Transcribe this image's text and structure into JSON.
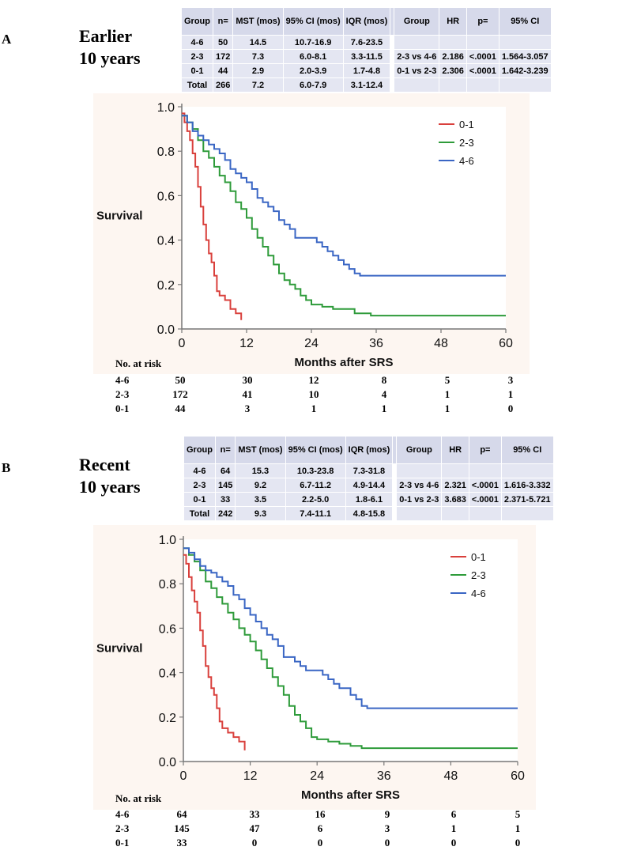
{
  "panels": [
    {
      "letter": "A",
      "title_line1": "Earlier",
      "title_line2": "10 years",
      "table_left": {
        "headers": [
          "Group",
          "n=",
          "MST (mos)",
          "95% CI (mos)",
          "IQR (mos)"
        ],
        "rows": [
          [
            "4-6",
            "50",
            "14.5",
            "10.7-16.9",
            "7.6-23.5"
          ],
          [
            "2-3",
            "172",
            "7.3",
            "6.0-8.1",
            "3.3-11.5"
          ],
          [
            "0-1",
            "44",
            "2.9",
            "2.0-3.9",
            "1.7-4.8"
          ],
          [
            "Total",
            "266",
            "7.2",
            "6.0-7.9",
            "3.1-12.4"
          ]
        ]
      },
      "table_right": {
        "headers": [
          "Group",
          "HR",
          "p=",
          "95% CI"
        ],
        "rows": [
          [
            "",
            "",
            "",
            ""
          ],
          [
            "2-3 vs 4-6",
            "2.186",
            "<.0001",
            "1.564-3.057"
          ],
          [
            "0-1 vs 2-3",
            "2.306",
            "<.0001",
            "1.642-3.239"
          ],
          [
            "",
            "",
            "",
            ""
          ]
        ]
      },
      "risk_table": {
        "title": "No. at risk",
        "rows": [
          {
            "group": "4-6",
            "values": [
              "50",
              "30",
              "12",
              "8",
              "5",
              "3"
            ]
          },
          {
            "group": "2-3",
            "values": [
              "172",
              "41",
              "10",
              "4",
              "1",
              "1"
            ]
          },
          {
            "group": "0-1",
            "values": [
              "44",
              "3",
              "1",
              "1",
              "1",
              "0"
            ]
          }
        ]
      }
    },
    {
      "letter": "B",
      "title_line1": "Recent",
      "title_line2": "10 years",
      "table_left": {
        "headers": [
          "Group",
          "n=",
          "MST (mos)",
          "95% CI (mos)",
          "IQR (mos)"
        ],
        "rows": [
          [
            "4-6",
            "64",
            "15.3",
            "10.3-23.8",
            "7.3-31.8"
          ],
          [
            "2-3",
            "145",
            "9.2",
            "6.7-11.2",
            "4.9-14.4"
          ],
          [
            "0-1",
            "33",
            "3.5",
            "2.2-5.0",
            "1.8-6.1"
          ],
          [
            "Total",
            "242",
            "9.3",
            "7.4-11.1",
            "4.8-15.8"
          ]
        ]
      },
      "table_right": {
        "headers": [
          "Group",
          "HR",
          "p=",
          "95% CI"
        ],
        "rows": [
          [
            "",
            "",
            "",
            ""
          ],
          [
            "2-3 vs 4-6",
            "2.321",
            "<.0001",
            "1.616-3.332"
          ],
          [
            "0-1 vs 2-3",
            "3.683",
            "<.0001",
            "2.371-5.721"
          ],
          [
            "",
            "",
            "",
            ""
          ]
        ]
      },
      "risk_table": {
        "title": "No. at risk",
        "rows": [
          {
            "group": "4-6",
            "values": [
              "64",
              "33",
              "16",
              "9",
              "6",
              "5"
            ]
          },
          {
            "group": "2-3",
            "values": [
              "145",
              "47",
              "6",
              "3",
              "1",
              "1"
            ]
          },
          {
            "group": "0-1",
            "values": [
              "33",
              "0",
              "0",
              "0",
              "0",
              "0"
            ]
          }
        ]
      }
    }
  ],
  "chart_data": [
    {
      "type": "line",
      "title": "Earlier 10 years",
      "xlabel": "Months after SRS",
      "ylabel": "Survival",
      "xlim": [
        0,
        60
      ],
      "ylim": [
        0,
        1.0
      ],
      "xticks": [
        "0",
        "12",
        "24",
        "36",
        "48",
        "60"
      ],
      "yticks": [
        "0.0",
        "0.2",
        "0.4",
        "0.6",
        "0.8",
        "1.0"
      ],
      "legend": "top-right",
      "series": [
        {
          "name": "0-1",
          "color": "#d9403c",
          "points": [
            [
              0,
              0.97
            ],
            [
              0.5,
              0.93
            ],
            [
              1,
              0.89
            ],
            [
              1.5,
              0.85
            ],
            [
              2,
              0.79
            ],
            [
              2.5,
              0.73
            ],
            [
              3,
              0.64
            ],
            [
              3.5,
              0.55
            ],
            [
              4,
              0.47
            ],
            [
              4.5,
              0.4
            ],
            [
              5,
              0.34
            ],
            [
              5.5,
              0.3
            ],
            [
              6,
              0.24
            ],
            [
              6.5,
              0.17
            ],
            [
              7,
              0.15
            ],
            [
              8,
              0.13
            ],
            [
              9,
              0.09
            ],
            [
              10,
              0.07
            ],
            [
              11,
              0.04
            ]
          ]
        },
        {
          "name": "2-3",
          "color": "#2e9b3a",
          "points": [
            [
              0,
              0.96
            ],
            [
              1,
              0.93
            ],
            [
              2,
              0.9
            ],
            [
              3,
              0.85
            ],
            [
              4,
              0.8
            ],
            [
              5,
              0.77
            ],
            [
              6,
              0.73
            ],
            [
              7,
              0.69
            ],
            [
              8,
              0.66
            ],
            [
              9,
              0.62
            ],
            [
              10,
              0.57
            ],
            [
              11,
              0.54
            ],
            [
              12,
              0.5
            ],
            [
              13,
              0.45
            ],
            [
              14,
              0.41
            ],
            [
              15,
              0.37
            ],
            [
              16,
              0.33
            ],
            [
              17,
              0.29
            ],
            [
              18,
              0.25
            ],
            [
              19,
              0.22
            ],
            [
              20,
              0.2
            ],
            [
              21,
              0.18
            ],
            [
              22,
              0.15
            ],
            [
              23,
              0.13
            ],
            [
              24,
              0.11
            ],
            [
              26,
              0.1
            ],
            [
              28,
              0.09
            ],
            [
              30,
              0.09
            ],
            [
              32,
              0.07
            ],
            [
              35,
              0.06
            ],
            [
              60,
              0.06
            ]
          ]
        },
        {
          "name": "4-6",
          "color": "#3a66c4",
          "points": [
            [
              0,
              0.96
            ],
            [
              1,
              0.93
            ],
            [
              2,
              0.89
            ],
            [
              3,
              0.87
            ],
            [
              4,
              0.85
            ],
            [
              5,
              0.83
            ],
            [
              6,
              0.81
            ],
            [
              7,
              0.79
            ],
            [
              8,
              0.76
            ],
            [
              9,
              0.72
            ],
            [
              10,
              0.7
            ],
            [
              11,
              0.68
            ],
            [
              12,
              0.66
            ],
            [
              13,
              0.63
            ],
            [
              14,
              0.59
            ],
            [
              15,
              0.57
            ],
            [
              16,
              0.55
            ],
            [
              17,
              0.53
            ],
            [
              18,
              0.49
            ],
            [
              19,
              0.47
            ],
            [
              20,
              0.45
            ],
            [
              21,
              0.41
            ],
            [
              24,
              0.41
            ],
            [
              25,
              0.39
            ],
            [
              26,
              0.37
            ],
            [
              27,
              0.35
            ],
            [
              28,
              0.33
            ],
            [
              29,
              0.31
            ],
            [
              30,
              0.29
            ],
            [
              31,
              0.27
            ],
            [
              32,
              0.25
            ],
            [
              33,
              0.24
            ],
            [
              60,
              0.24
            ]
          ]
        }
      ]
    },
    {
      "type": "line",
      "title": "Recent 10 years",
      "xlabel": "Months after SRS",
      "ylabel": "Survival",
      "xlim": [
        0,
        60
      ],
      "ylim": [
        0,
        1.0
      ],
      "xticks": [
        "0",
        "12",
        "24",
        "36",
        "48",
        "60"
      ],
      "yticks": [
        "0.0",
        "0.2",
        "0.4",
        "0.6",
        "0.8",
        "1.0"
      ],
      "legend": "top-right",
      "series": [
        {
          "name": "0-1",
          "color": "#d9403c",
          "points": [
            [
              0,
              0.93
            ],
            [
              0.5,
              0.89
            ],
            [
              1,
              0.83
            ],
            [
              1.5,
              0.77
            ],
            [
              2,
              0.72
            ],
            [
              2.5,
              0.67
            ],
            [
              3,
              0.59
            ],
            [
              3.5,
              0.52
            ],
            [
              4,
              0.43
            ],
            [
              4.5,
              0.38
            ],
            [
              5,
              0.33
            ],
            [
              5.5,
              0.3
            ],
            [
              6,
              0.24
            ],
            [
              6.5,
              0.18
            ],
            [
              7,
              0.15
            ],
            [
              8,
              0.13
            ],
            [
              9,
              0.11
            ],
            [
              10,
              0.09
            ],
            [
              11,
              0.05
            ]
          ]
        },
        {
          "name": "2-3",
          "color": "#2e9b3a",
          "points": [
            [
              0,
              0.96
            ],
            [
              1,
              0.93
            ],
            [
              2,
              0.9
            ],
            [
              3,
              0.86
            ],
            [
              4,
              0.81
            ],
            [
              5,
              0.78
            ],
            [
              6,
              0.74
            ],
            [
              7,
              0.71
            ],
            [
              8,
              0.67
            ],
            [
              9,
              0.64
            ],
            [
              10,
              0.6
            ],
            [
              11,
              0.57
            ],
            [
              12,
              0.54
            ],
            [
              13,
              0.5
            ],
            [
              14,
              0.46
            ],
            [
              15,
              0.42
            ],
            [
              16,
              0.38
            ],
            [
              17,
              0.34
            ],
            [
              18,
              0.3
            ],
            [
              19,
              0.25
            ],
            [
              20,
              0.21
            ],
            [
              21,
              0.18
            ],
            [
              22,
              0.15
            ],
            [
              23,
              0.11
            ],
            [
              24,
              0.1
            ],
            [
              26,
              0.09
            ],
            [
              28,
              0.08
            ],
            [
              30,
              0.07
            ],
            [
              32,
              0.06
            ],
            [
              35,
              0.06
            ],
            [
              60,
              0.06
            ]
          ]
        },
        {
          "name": "4-6",
          "color": "#3a66c4",
          "points": [
            [
              0,
              0.96
            ],
            [
              1,
              0.94
            ],
            [
              2,
              0.91
            ],
            [
              3,
              0.88
            ],
            [
              4,
              0.86
            ],
            [
              5,
              0.85
            ],
            [
              6,
              0.83
            ],
            [
              7,
              0.81
            ],
            [
              8,
              0.79
            ],
            [
              9,
              0.75
            ],
            [
              10,
              0.73
            ],
            [
              11,
              0.69
            ],
            [
              12,
              0.66
            ],
            [
              13,
              0.63
            ],
            [
              14,
              0.6
            ],
            [
              15,
              0.57
            ],
            [
              16,
              0.55
            ],
            [
              17,
              0.52
            ],
            [
              18,
              0.47
            ],
            [
              20,
              0.45
            ],
            [
              21,
              0.43
            ],
            [
              22,
              0.41
            ],
            [
              24,
              0.41
            ],
            [
              25,
              0.39
            ],
            [
              26,
              0.37
            ],
            [
              27,
              0.35
            ],
            [
              28,
              0.33
            ],
            [
              30,
              0.3
            ],
            [
              31,
              0.28
            ],
            [
              32,
              0.25
            ],
            [
              33,
              0.24
            ],
            [
              60,
              0.24
            ]
          ]
        }
      ]
    }
  ]
}
